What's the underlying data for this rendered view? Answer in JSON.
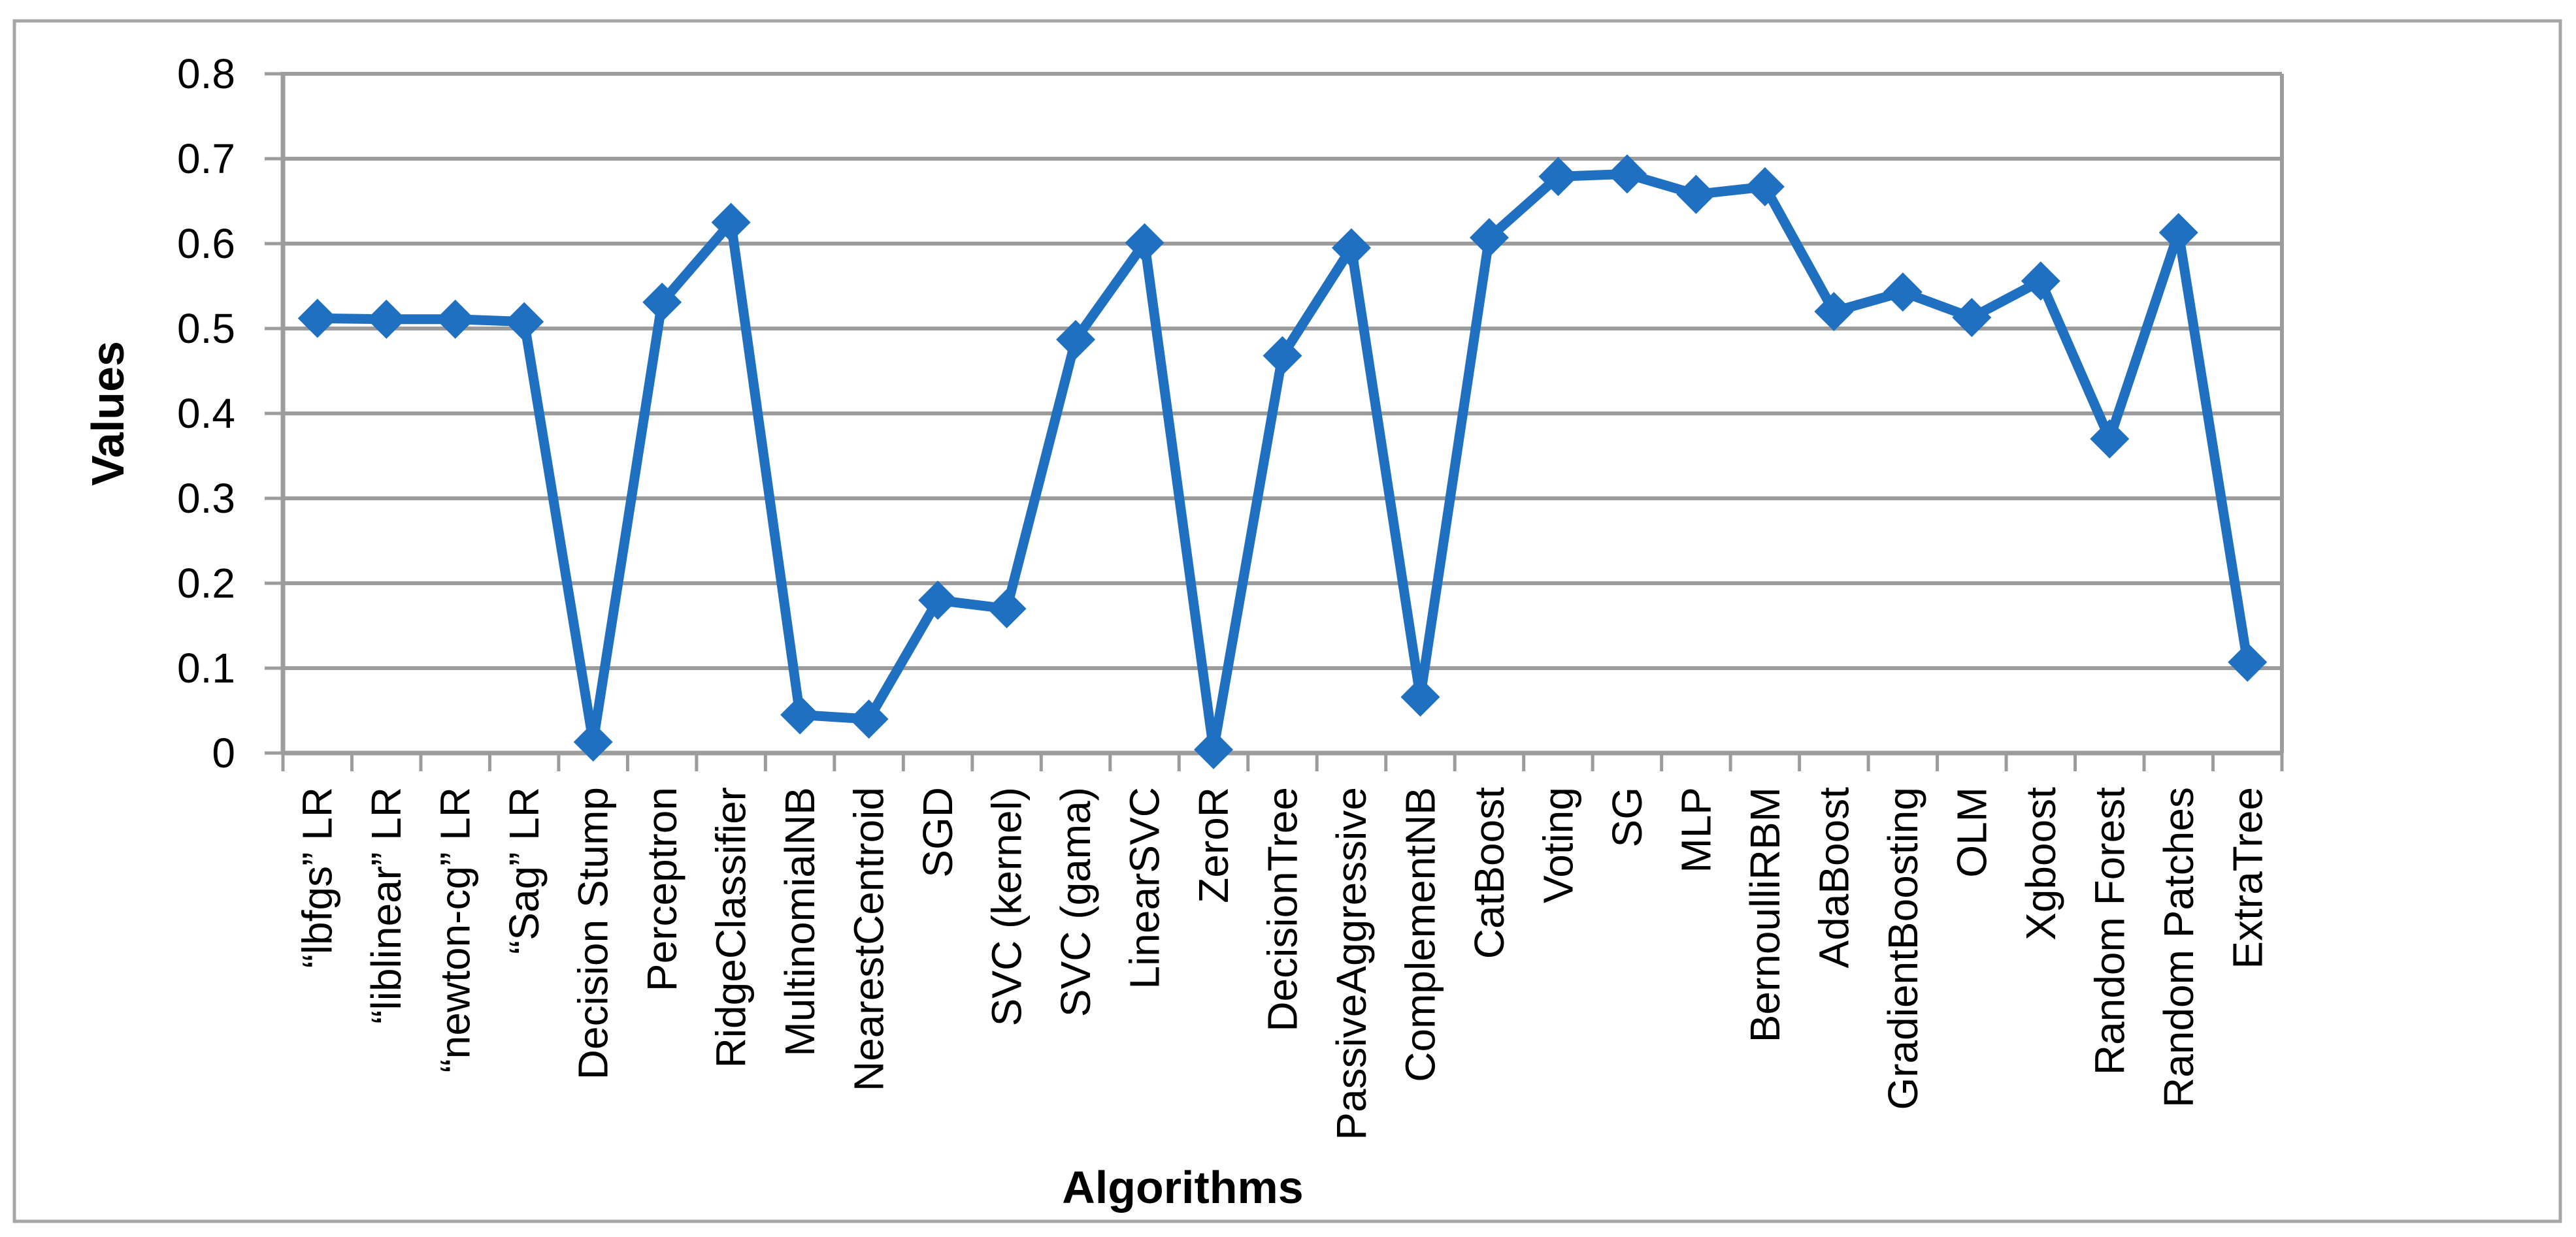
{
  "chart_data": {
    "type": "line",
    "title": "",
    "xlabel": "Algorithms",
    "ylabel": "Values",
    "categories": [
      "“lbfgs” LR",
      "“liblinear” LR",
      "“newton-cg” LR",
      "“Sag” LR",
      "Decision Stump",
      "Perceptron",
      "RidgeClassifier",
      "MultinomialNB",
      "NearestCentroid",
      "SGD",
      "SVC (kernel)",
      "SVC (gama)",
      "LinearSVC",
      "ZeroR",
      "DecisionTree",
      "PassiveAggressive",
      "ComplementNB",
      "CatBoost",
      "Voting",
      "SG",
      "MLP",
      "BernoulliRBM",
      "AdaBoost",
      "GradientBoosting",
      "OLM",
      "Xgboost",
      "Random Forest",
      "Random Patches",
      "ExtraTree"
    ],
    "values": [
      0.512,
      0.511,
      0.511,
      0.508,
      0.013,
      0.531,
      0.625,
      0.045,
      0.04,
      0.18,
      0.17,
      0.487,
      0.601,
      0.004,
      0.468,
      0.595,
      0.066,
      0.607,
      0.679,
      0.682,
      0.658,
      0.667,
      0.52,
      0.543,
      0.513,
      0.556,
      0.37,
      0.613,
      0.107
    ],
    "ylim": [
      0,
      0.8
    ],
    "ytick_step": 0.1,
    "ytick_labels": [
      "0",
      "0.1",
      "0.2",
      "0.3",
      "0.4",
      "0.5",
      "0.6",
      "0.7",
      "0.8"
    ],
    "grid": true,
    "legend_position": "none",
    "marker": "diamond",
    "series_color": "#1F70C1",
    "gridline_color": "#9C9C9C",
    "axis_color": "#9C9C9C",
    "frame_color": "#A6A6A6",
    "text_color": "#000000"
  }
}
